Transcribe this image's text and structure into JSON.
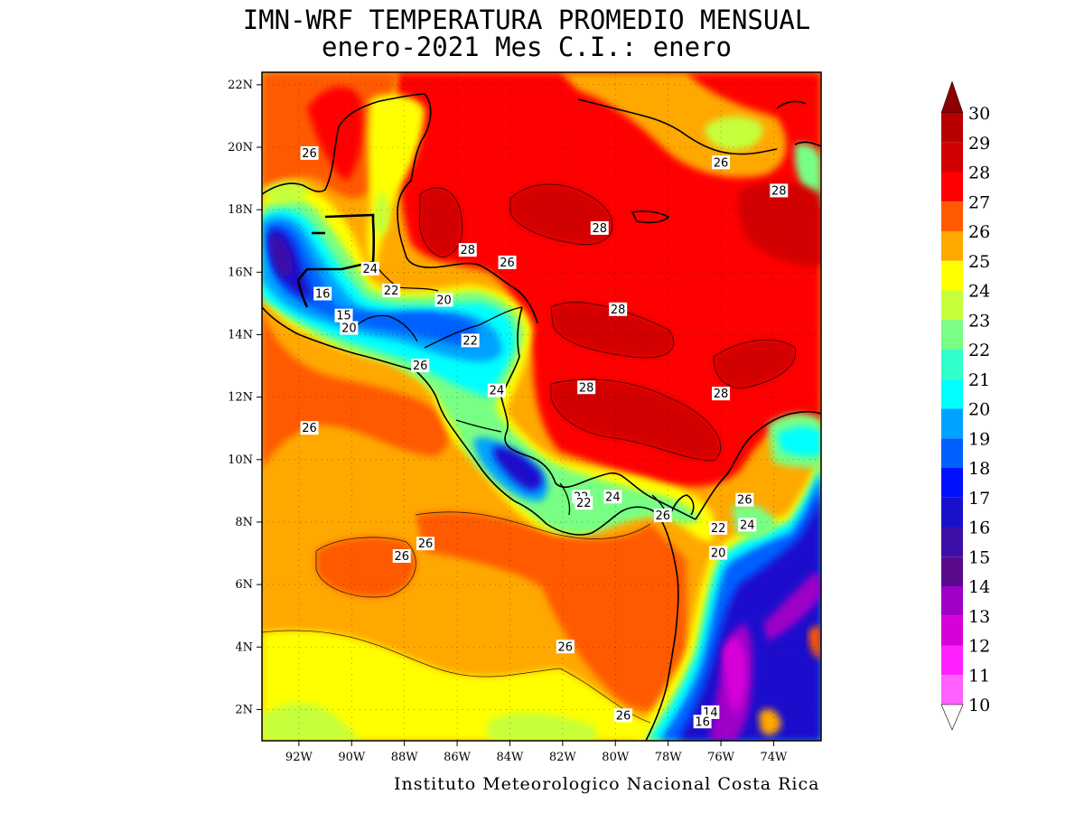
{
  "title_line1": "IMN-WRF  TEMPERATURA PROMEDIO MENSUAL",
  "title_line2": "enero-2021 Mes C.I.: enero",
  "footer": "Instituto Meteorologico Nacional Costa Rica",
  "map": {
    "lon_range": [
      -93.4,
      -72.2
    ],
    "lat_range": [
      1.0,
      22.4
    ],
    "lon_ticks": [
      {
        "value": -92,
        "label": "92W"
      },
      {
        "value": -90,
        "label": "90W"
      },
      {
        "value": -88,
        "label": "88W"
      },
      {
        "value": -86,
        "label": "86W"
      },
      {
        "value": -84,
        "label": "84W"
      },
      {
        "value": -82,
        "label": "82W"
      },
      {
        "value": -80,
        "label": "80W"
      },
      {
        "value": -78,
        "label": "78W"
      },
      {
        "value": -76,
        "label": "76W"
      },
      {
        "value": -74,
        "label": "74W"
      }
    ],
    "lat_ticks": [
      {
        "value": 2,
        "label": "2N"
      },
      {
        "value": 4,
        "label": "4N"
      },
      {
        "value": 6,
        "label": "6N"
      },
      {
        "value": 8,
        "label": "8N"
      },
      {
        "value": 10,
        "label": "10N"
      },
      {
        "value": 12,
        "label": "12N"
      },
      {
        "value": 14,
        "label": "14N"
      },
      {
        "value": 16,
        "label": "16N"
      },
      {
        "value": 18,
        "label": "18N"
      },
      {
        "value": 20,
        "label": "20N"
      },
      {
        "value": 22,
        "label": "22N"
      }
    ],
    "contour_labels": [
      {
        "text": "26",
        "lon": -91.6,
        "lat": 19.8
      },
      {
        "text": "24",
        "lon": -89.3,
        "lat": 16.1
      },
      {
        "text": "16",
        "lon": -91.1,
        "lat": 15.3
      },
      {
        "text": "15",
        "lon": -90.3,
        "lat": 14.6
      },
      {
        "text": "20",
        "lon": -90.1,
        "lat": 14.2
      },
      {
        "text": "22",
        "lon": -88.5,
        "lat": 15.4
      },
      {
        "text": "20",
        "lon": -86.5,
        "lat": 15.1
      },
      {
        "text": "22",
        "lon": -85.5,
        "lat": 13.8
      },
      {
        "text": "26",
        "lon": -87.4,
        "lat": 13.0
      },
      {
        "text": "24",
        "lon": -84.5,
        "lat": 12.2
      },
      {
        "text": "26",
        "lon": -91.6,
        "lat": 11.0
      },
      {
        "text": "28",
        "lon": -85.6,
        "lat": 16.7
      },
      {
        "text": "26",
        "lon": -84.1,
        "lat": 16.3
      },
      {
        "text": "28",
        "lon": -80.6,
        "lat": 17.4
      },
      {
        "text": "28",
        "lon": -79.9,
        "lat": 14.8
      },
      {
        "text": "28",
        "lon": -81.1,
        "lat": 12.3
      },
      {
        "text": "28",
        "lon": -76.0,
        "lat": 12.1
      },
      {
        "text": "28",
        "lon": -73.8,
        "lat": 18.6
      },
      {
        "text": "26",
        "lon": -76.0,
        "lat": 19.5
      },
      {
        "text": "22",
        "lon": -81.3,
        "lat": 8.8
      },
      {
        "text": "22",
        "lon": -81.2,
        "lat": 8.6
      },
      {
        "text": "24",
        "lon": -80.1,
        "lat": 8.8
      },
      {
        "text": "26",
        "lon": -78.2,
        "lat": 8.2
      },
      {
        "text": "26",
        "lon": -75.1,
        "lat": 8.7
      },
      {
        "text": "22",
        "lon": -76.1,
        "lat": 7.8
      },
      {
        "text": "24",
        "lon": -75.0,
        "lat": 7.9
      },
      {
        "text": "20",
        "lon": -76.1,
        "lat": 7.0
      },
      {
        "text": "26",
        "lon": -88.1,
        "lat": 6.9
      },
      {
        "text": "26",
        "lon": -87.2,
        "lat": 7.3
      },
      {
        "text": "26",
        "lon": -81.9,
        "lat": 4.0
      },
      {
        "text": "26",
        "lon": -79.7,
        "lat": 1.8
      },
      {
        "text": "14",
        "lon": -76.4,
        "lat": 1.9
      },
      {
        "text": "16",
        "lon": -76.7,
        "lat": 1.6
      }
    ]
  },
  "legend": {
    "values": [
      30,
      29,
      28,
      27,
      26,
      25,
      24,
      23,
      22,
      21,
      20,
      19,
      18,
      17,
      16,
      15,
      14,
      13,
      12,
      11,
      10
    ],
    "colors": [
      "#b80000",
      "#d20000",
      "#ff0000",
      "#ff5a00",
      "#ffa800",
      "#ffff00",
      "#c6ff3a",
      "#78ff84",
      "#30ffcc",
      "#00ffff",
      "#00a2ff",
      "#0060ff",
      "#0010ff",
      "#1a10cc",
      "#3c10a8",
      "#5a0a8c",
      "#9e00c8",
      "#d800d8",
      "#ff20ff",
      "#ff60ff",
      "#ffa8ff"
    ],
    "top_arrow_color": "#8b0000"
  }
}
